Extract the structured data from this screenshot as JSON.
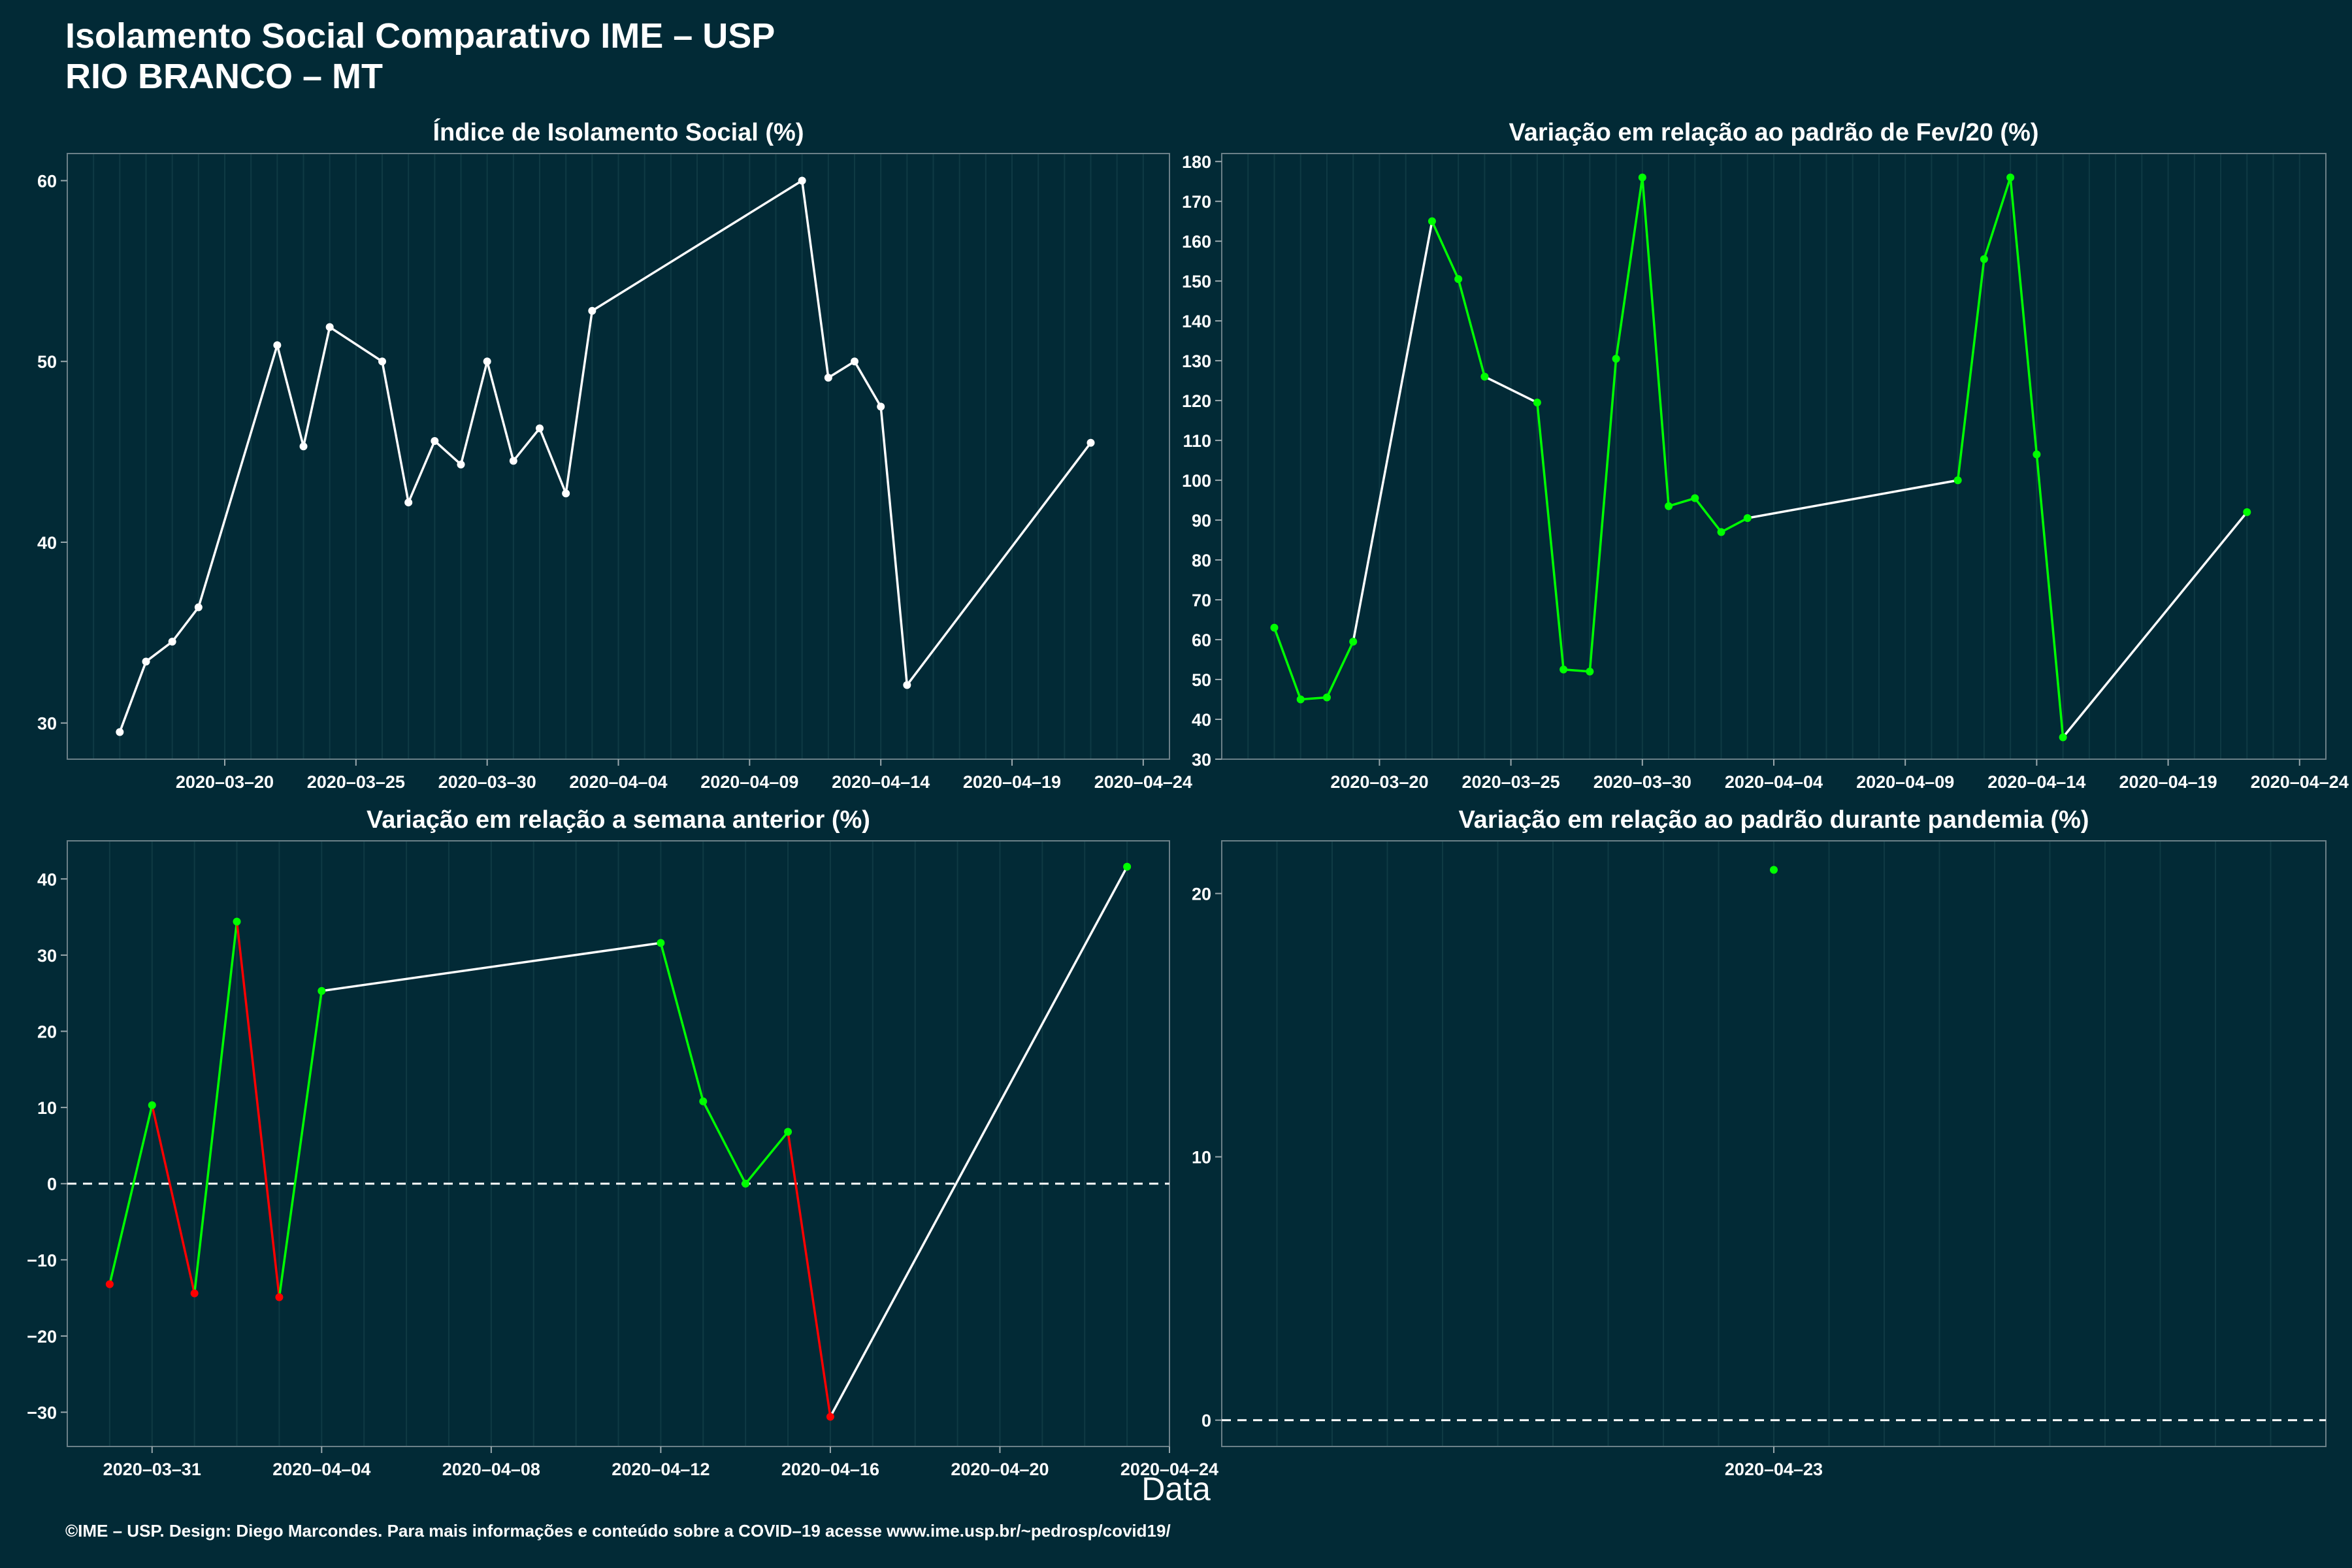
{
  "header": {
    "title_line1": "Isolamento Social Comparativo IME – USP",
    "title_line2": "RIO BRANCO – MT"
  },
  "xlabel": "Data",
  "footer": "©IME – USP. Design: Diego Marcondes. Para mais informações e conteúdo sobre a COVID–19 acesse www.ime.usp.br/~pedrosp/covid19/",
  "colors": {
    "background": "#022a36",
    "up": "#00ff00",
    "down": "#ff0000",
    "neutral": "#ffffff"
  },
  "chart_data": [
    {
      "type": "line",
      "title": "Índice de Isolamento Social (%)",
      "xlabel": "",
      "ylabel": "",
      "xlim": [
        "2020-03-14",
        "2020-04-25"
      ],
      "ylim": [
        28,
        61.5
      ],
      "xticks": [
        "2020-03-20",
        "2020-03-25",
        "2020-03-30",
        "2020-04-04",
        "2020-04-09",
        "2020-04-14",
        "2020-04-19",
        "2020-04-24"
      ],
      "yticks": [
        30,
        40,
        50,
        60
      ],
      "zero_line": false,
      "points": [
        {
          "x": "2020-03-16",
          "y": 29.5,
          "c": "neutral"
        },
        {
          "x": "2020-03-17",
          "y": 33.4,
          "c": "neutral"
        },
        {
          "x": "2020-03-18",
          "y": 34.5,
          "c": "neutral"
        },
        {
          "x": "2020-03-19",
          "y": 36.4,
          "c": "neutral"
        },
        {
          "x": "2020-03-22",
          "y": 50.9,
          "c": "neutral"
        },
        {
          "x": "2020-03-23",
          "y": 45.3,
          "c": "neutral"
        },
        {
          "x": "2020-03-24",
          "y": 51.9,
          "c": "neutral"
        },
        {
          "x": "2020-03-26",
          "y": 50.0,
          "c": "neutral"
        },
        {
          "x": "2020-03-27",
          "y": 42.2,
          "c": "neutral"
        },
        {
          "x": "2020-03-28",
          "y": 45.6,
          "c": "neutral"
        },
        {
          "x": "2020-03-29",
          "y": 44.3,
          "c": "neutral"
        },
        {
          "x": "2020-03-30",
          "y": 50.0,
          "c": "neutral"
        },
        {
          "x": "2020-03-31",
          "y": 44.5,
          "c": "neutral"
        },
        {
          "x": "2020-04-01",
          "y": 46.3,
          "c": "neutral"
        },
        {
          "x": "2020-04-02",
          "y": 42.7,
          "c": "neutral"
        },
        {
          "x": "2020-04-03",
          "y": 52.8,
          "c": "neutral"
        },
        {
          "x": "2020-04-11",
          "y": 60.0,
          "c": "neutral"
        },
        {
          "x": "2020-04-12",
          "y": 49.1,
          "c": "neutral"
        },
        {
          "x": "2020-04-13",
          "y": 50.0,
          "c": "neutral"
        },
        {
          "x": "2020-04-14",
          "y": 47.5,
          "c": "neutral"
        },
        {
          "x": "2020-04-15",
          "y": 32.1,
          "c": "neutral"
        },
        {
          "x": "2020-04-22",
          "y": 45.5,
          "c": "neutral"
        }
      ]
    },
    {
      "type": "line",
      "title": "Variação em relação ao padrão de Fev/20 (%)",
      "xlabel": "",
      "ylabel": "",
      "xlim": [
        "2020-03-14",
        "2020-04-25"
      ],
      "ylim": [
        30,
        182
      ],
      "xticks": [
        "2020-03-20",
        "2020-03-25",
        "2020-03-30",
        "2020-04-04",
        "2020-04-09",
        "2020-04-14",
        "2020-04-19",
        "2020-04-24"
      ],
      "yticks": [
        30,
        40,
        50,
        60,
        70,
        80,
        90,
        100,
        110,
        120,
        130,
        140,
        150,
        160,
        170,
        180
      ],
      "zero_line": false,
      "points": [
        {
          "x": "2020-03-16",
          "y": 63,
          "c": "up"
        },
        {
          "x": "2020-03-17",
          "y": 45,
          "c": "up"
        },
        {
          "x": "2020-03-18",
          "y": 45.5,
          "c": "up"
        },
        {
          "x": "2020-03-19",
          "y": 59.5,
          "c": "up"
        },
        {
          "x": "2020-03-22",
          "y": 165,
          "c": "up"
        },
        {
          "x": "2020-03-23",
          "y": 150.5,
          "c": "up"
        },
        {
          "x": "2020-03-24",
          "y": 126,
          "c": "up"
        },
        {
          "x": "2020-03-26",
          "y": 119.5,
          "c": "up"
        },
        {
          "x": "2020-03-27",
          "y": 52.5,
          "c": "up"
        },
        {
          "x": "2020-03-28",
          "y": 52,
          "c": "up"
        },
        {
          "x": "2020-03-29",
          "y": 130.5,
          "c": "up"
        },
        {
          "x": "2020-03-30",
          "y": 176,
          "c": "up"
        },
        {
          "x": "2020-03-31",
          "y": 93.5,
          "c": "up"
        },
        {
          "x": "2020-04-01",
          "y": 95.5,
          "c": "up"
        },
        {
          "x": "2020-04-02",
          "y": 87,
          "c": "up"
        },
        {
          "x": "2020-04-03",
          "y": 90.5,
          "c": "up"
        },
        {
          "x": "2020-04-11",
          "y": 100,
          "c": "up"
        },
        {
          "x": "2020-04-12",
          "y": 155.5,
          "c": "up"
        },
        {
          "x": "2020-04-13",
          "y": 176,
          "c": "up"
        },
        {
          "x": "2020-04-14",
          "y": 106.5,
          "c": "up"
        },
        {
          "x": "2020-04-15",
          "y": 35.5,
          "c": "up"
        },
        {
          "x": "2020-04-22",
          "y": 92,
          "c": "up"
        }
      ]
    },
    {
      "type": "line",
      "title": "Variação em relação a semana anterior (%)",
      "xlabel": "",
      "ylabel": "",
      "xlim": [
        "2020-03-29",
        "2020-04-24"
      ],
      "ylim": [
        -34.5,
        45
      ],
      "xticks": [
        "2020-03-31",
        "2020-04-04",
        "2020-04-08",
        "2020-04-12",
        "2020-04-16",
        "2020-04-20",
        "2020-04-24"
      ],
      "yticks": [
        -30,
        -20,
        -10,
        0,
        10,
        20,
        30,
        40
      ],
      "zero_line": true,
      "points": [
        {
          "x": "2020-03-30",
          "y": -13.2,
          "c": "down"
        },
        {
          "x": "2020-03-31",
          "y": 10.3,
          "c": "up"
        },
        {
          "x": "2020-04-01",
          "y": -14.4,
          "c": "down"
        },
        {
          "x": "2020-04-02",
          "y": 34.4,
          "c": "up"
        },
        {
          "x": "2020-04-03",
          "y": -14.9,
          "c": "down"
        },
        {
          "x": "2020-04-04",
          "y": 25.3,
          "c": "up"
        },
        {
          "x": "2020-04-12",
          "y": 31.6,
          "c": "up"
        },
        {
          "x": "2020-04-13",
          "y": 10.8,
          "c": "up"
        },
        {
          "x": "2020-04-14",
          "y": 0.0,
          "c": "up"
        },
        {
          "x": "2020-04-15",
          "y": 6.8,
          "c": "up"
        },
        {
          "x": "2020-04-16",
          "y": -30.6,
          "c": "down"
        },
        {
          "x": "2020-04-23",
          "y": 41.6,
          "c": "up"
        }
      ]
    },
    {
      "type": "scatter",
      "title": "Variação em relação ao padrão durante pandemia (%)",
      "xlabel": "",
      "ylabel": "",
      "xlim": [
        "2020-04-13",
        "2020-05-03"
      ],
      "ylim": [
        -1,
        22
      ],
      "xticks": [
        "2020-04-23"
      ],
      "yticks": [
        0,
        10,
        20
      ],
      "zero_line": true,
      "points": [
        {
          "x": "2020-04-23",
          "y": 20.9,
          "c": "up"
        }
      ]
    }
  ]
}
